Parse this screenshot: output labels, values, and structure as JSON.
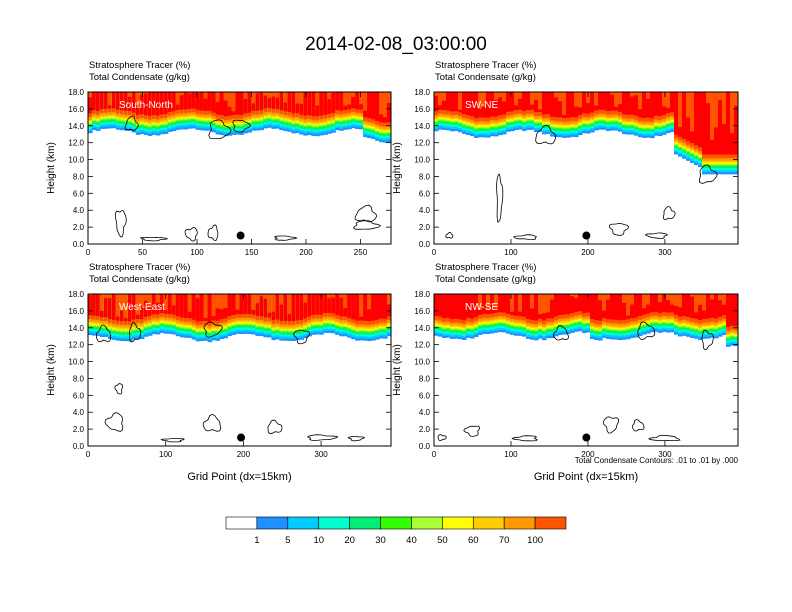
{
  "title": "2014-02-08_03:00:00",
  "footnote": "Total Condensate Contours: .01 to .01 by .000",
  "colors": {
    "bins": [
      "#ffffff",
      "#1e90ff",
      "#00ccff",
      "#00ffd0",
      "#00ee77",
      "#33ff00",
      "#aaff33",
      "#ffff00",
      "#ffcc00",
      "#ff9900",
      "#ff5500",
      "#ff0000"
    ],
    "contour": "#000000"
  },
  "colorbar": {
    "labels": [
      "1",
      "5",
      "10",
      "20",
      "30",
      "40",
      "50",
      "60",
      "70",
      "100"
    ]
  },
  "chart_data": [
    {
      "type": "heatmap",
      "title1": "Stratosphere Tracer   (%)",
      "title2": "Total Condensate   (g/kg)",
      "label": "South-North",
      "xlabel": "",
      "ylabel": "Height (km)",
      "xlim": [
        0,
        278
      ],
      "ylim": [
        0,
        18
      ],
      "xticks": [
        "0",
        "50",
        "100",
        "150",
        "200",
        "250"
      ],
      "yticks": [
        "0.0",
        "2.0",
        "4.0",
        "6.0",
        "8.0",
        "10.0",
        "12.0",
        "14.0",
        "16.0",
        "18.0"
      ],
      "tropopause_km": 15.6,
      "marker": {
        "x": 140,
        "y_km": 1.0
      }
    },
    {
      "type": "heatmap",
      "title1": "Stratosphere Tracer   (%)",
      "title2": "Total Condensate   (g/kg)",
      "label": "SW-NE",
      "xlabel": "",
      "ylabel": "Height (km)",
      "xlim": [
        0,
        395
      ],
      "ylim": [
        0,
        18
      ],
      "xticks": [
        "0",
        "100",
        "200",
        "300"
      ],
      "yticks": [
        "0.0",
        "2.0",
        "4.0",
        "6.0",
        "8.0",
        "10.0",
        "12.0",
        "14.0",
        "16.0",
        "18.0"
      ],
      "tropopause_km": 15.4,
      "marker": {
        "x": 198,
        "y_km": 1.0
      }
    },
    {
      "type": "heatmap",
      "title1": "Stratosphere Tracer   (%)",
      "title2": "Total Condensate   (g/kg)",
      "label": "West-East",
      "xlabel": "Grid Point (dx=15km)",
      "ylabel": "Height (km)",
      "xlim": [
        0,
        390
      ],
      "ylim": [
        0,
        18
      ],
      "xticks": [
        "0",
        "100",
        "200",
        "300"
      ],
      "yticks": [
        "0.0",
        "2.0",
        "4.0",
        "6.0",
        "8.0",
        "10.0",
        "12.0",
        "14.0",
        "16.0",
        "18.0"
      ],
      "tropopause_km": 15.2,
      "marker": {
        "x": 197,
        "y_km": 1.0
      }
    },
    {
      "type": "heatmap",
      "title1": "Stratosphere Tracer   (%)",
      "title2": "Total Condensate   (g/kg)",
      "label": "NW-SE",
      "xlabel": "Grid Point (dx=15km)",
      "ylabel": "Height (km)",
      "xlim": [
        0,
        395
      ],
      "ylim": [
        0,
        18
      ],
      "xticks": [
        "0",
        "100",
        "200",
        "300"
      ],
      "yticks": [
        "0.0",
        "2.0",
        "4.0",
        "6.0",
        "8.0",
        "10.0",
        "12.0",
        "14.0",
        "16.0",
        "18.0"
      ],
      "tropopause_km": 15.4,
      "marker": {
        "x": 198,
        "y_km": 1.0
      }
    }
  ]
}
